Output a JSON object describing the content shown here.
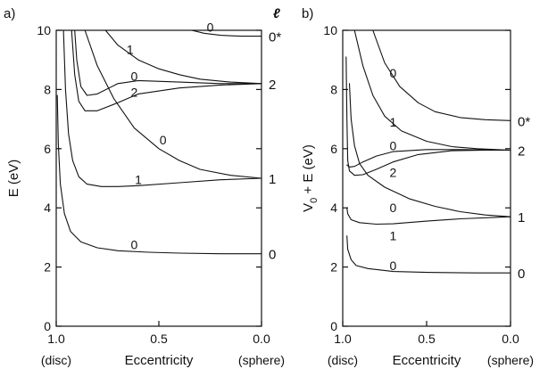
{
  "chart_data": [
    {
      "type": "line",
      "panel_label": "a)",
      "ylabel": "E (eV)",
      "xlabel": "Eccentricity",
      "x_end_left": "(disc)",
      "x_end_right": "(sphere)",
      "right_axis_title": "ℓ",
      "xlim": [
        1.0,
        0.0
      ],
      "ylim": [
        0,
        10
      ],
      "xticks": [
        "1.0",
        "0.5",
        "0.0"
      ],
      "yticks": [
        "0",
        "2",
        "4",
        "6",
        "8",
        "10"
      ],
      "right_labels": [
        {
          "text": "0*",
          "y": 9.8
        },
        {
          "text": "2",
          "y": 8.2
        },
        {
          "text": "1",
          "y": 5.0
        },
        {
          "text": "0",
          "y": 2.45
        }
      ],
      "series": [
        {
          "label": "0",
          "label_x": 0.62,
          "label_y": 2.75,
          "points": [
            [
              0.995,
              7.8
            ],
            [
              0.99,
              6.2
            ],
            [
              0.98,
              4.8
            ],
            [
              0.96,
              3.8
            ],
            [
              0.93,
              3.2
            ],
            [
              0.88,
              2.85
            ],
            [
              0.8,
              2.65
            ],
            [
              0.7,
              2.55
            ],
            [
              0.55,
              2.5
            ],
            [
              0.4,
              2.47
            ],
            [
              0.2,
              2.45
            ],
            [
              0.0,
              2.45
            ]
          ]
        },
        {
          "label": "1",
          "label_x": 0.6,
          "label_y": 4.95,
          "points": [
            [
              0.965,
              10
            ],
            [
              0.955,
              8
            ],
            [
              0.94,
              6.5
            ],
            [
              0.92,
              5.6
            ],
            [
              0.89,
              5.05
            ],
            [
              0.85,
              4.8
            ],
            [
              0.78,
              4.72
            ],
            [
              0.7,
              4.72
            ],
            [
              0.6,
              4.75
            ],
            [
              0.4,
              4.85
            ],
            [
              0.2,
              4.95
            ],
            [
              0.0,
              5.0
            ]
          ]
        },
        {
          "label": "0",
          "label_x": 0.48,
          "label_y": 6.3,
          "points": [
            [
              0.86,
              10
            ],
            [
              0.8,
              8.8
            ],
            [
              0.72,
              7.7
            ],
            [
              0.62,
              6.7
            ],
            [
              0.5,
              6.0
            ],
            [
              0.4,
              5.6
            ],
            [
              0.3,
              5.3
            ],
            [
              0.15,
              5.1
            ],
            [
              0.0,
              5.0
            ]
          ]
        },
        {
          "label": "2",
          "label_x": 0.62,
          "label_y": 7.9,
          "points": [
            [
              0.925,
              10
            ],
            [
              0.91,
              8.5
            ],
            [
              0.89,
              7.6
            ],
            [
              0.86,
              7.28
            ],
            [
              0.8,
              7.28
            ],
            [
              0.7,
              7.55
            ],
            [
              0.6,
              7.85
            ],
            [
              0.4,
              8.05
            ],
            [
              0.2,
              8.15
            ],
            [
              0.0,
              8.2
            ]
          ]
        },
        {
          "label": "0",
          "label_x": 0.62,
          "label_y": 8.45,
          "points": [
            [
              0.91,
              10
            ],
            [
              0.9,
              9.0
            ],
            [
              0.88,
              8.1
            ],
            [
              0.85,
              7.8
            ],
            [
              0.8,
              7.85
            ],
            [
              0.7,
              8.2
            ],
            [
              0.6,
              8.3
            ],
            [
              0.4,
              8.25
            ],
            [
              0.2,
              8.2
            ],
            [
              0.0,
              8.2
            ]
          ]
        },
        {
          "label": "1",
          "label_x": 0.64,
          "label_y": 9.35,
          "points": [
            [
              0.76,
              10
            ],
            [
              0.7,
              9.5
            ],
            [
              0.6,
              9.0
            ],
            [
              0.5,
              8.7
            ],
            [
              0.4,
              8.5
            ],
            [
              0.3,
              8.35
            ],
            [
              0.15,
              8.25
            ],
            [
              0.0,
              8.2
            ]
          ]
        },
        {
          "label": "0",
          "label_x": 0.25,
          "label_y": 10.1,
          "points": [
            [
              0.34,
              10
            ],
            [
              0.28,
              9.9
            ],
            [
              0.2,
              9.83
            ],
            [
              0.1,
              9.8
            ],
            [
              0.0,
              9.8
            ]
          ]
        }
      ]
    },
    {
      "type": "line",
      "panel_label": "b)",
      "ylabel": "V0 + E (eV)",
      "xlabel": "Eccentricity",
      "x_end_left": "(disc)",
      "x_end_right": "(sphere)",
      "right_axis_title": "",
      "xlim": [
        1.0,
        0.0
      ],
      "ylim": [
        0,
        10
      ],
      "xticks": [
        "1.0",
        "0.5",
        "0.0"
      ],
      "yticks": [
        "0",
        "2",
        "4",
        "6",
        "8",
        "10"
      ],
      "right_labels": [
        {
          "text": "0*",
          "y": 6.95
        },
        {
          "text": "2",
          "y": 5.95
        },
        {
          "text": "1",
          "y": 3.7
        },
        {
          "text": "0",
          "y": 1.8
        }
      ],
      "series": [
        {
          "label": "0",
          "label_x": 0.7,
          "label_y": 2.05,
          "points": [
            [
              0.975,
              3.05
            ],
            [
              0.97,
              2.6
            ],
            [
              0.95,
              2.25
            ],
            [
              0.92,
              2.05
            ],
            [
              0.85,
              1.95
            ],
            [
              0.7,
              1.85
            ],
            [
              0.5,
              1.82
            ],
            [
              0.2,
              1.8
            ],
            [
              0.0,
              1.8
            ]
          ]
        },
        {
          "label": "1",
          "label_x": 0.7,
          "label_y": 3.05,
          "points": [
            [
              0.975,
              4.0
            ],
            [
              0.97,
              3.8
            ],
            [
              0.95,
              3.6
            ],
            [
              0.9,
              3.5
            ],
            [
              0.8,
              3.45
            ],
            [
              0.7,
              3.46
            ],
            [
              0.5,
              3.55
            ],
            [
              0.3,
              3.63
            ],
            [
              0.0,
              3.7
            ]
          ]
        },
        {
          "label": "0",
          "label_x": 0.7,
          "label_y": 4.0,
          "points": [
            [
              0.96,
              8.2
            ],
            [
              0.95,
              7.0
            ],
            [
              0.93,
              6.1
            ],
            [
              0.9,
              5.5
            ],
            [
              0.85,
              5.1
            ],
            [
              0.75,
              4.7
            ],
            [
              0.6,
              4.3
            ],
            [
              0.45,
              4.05
            ],
            [
              0.3,
              3.87
            ],
            [
              0.15,
              3.76
            ],
            [
              0.0,
              3.7
            ]
          ]
        },
        {
          "label": "2",
          "label_x": 0.7,
          "label_y": 5.2,
          "points": [
            [
              0.98,
              9.1
            ],
            [
              0.975,
              7.0
            ],
            [
              0.97,
              5.6
            ],
            [
              0.96,
              5.25
            ],
            [
              0.93,
              5.1
            ],
            [
              0.88,
              5.12
            ],
            [
              0.8,
              5.3
            ],
            [
              0.7,
              5.55
            ],
            [
              0.55,
              5.8
            ],
            [
              0.35,
              5.93
            ],
            [
              0.15,
              5.95
            ],
            [
              0.0,
              5.95
            ]
          ]
        },
        {
          "label": "0",
          "label_x": 0.7,
          "label_y": 6.1,
          "points": [
            [
              0.975,
              5.45
            ],
            [
              0.96,
              5.38
            ],
            [
              0.93,
              5.4
            ],
            [
              0.88,
              5.55
            ],
            [
              0.8,
              5.75
            ],
            [
              0.7,
              5.9
            ],
            [
              0.5,
              5.97
            ],
            [
              0.3,
              5.97
            ],
            [
              0.0,
              5.95
            ]
          ]
        },
        {
          "label": "1",
          "label_x": 0.7,
          "label_y": 6.9,
          "points": [
            [
              0.93,
              10
            ],
            [
              0.88,
              8.8
            ],
            [
              0.82,
              7.8
            ],
            [
              0.75,
              7.1
            ],
            [
              0.65,
              6.6
            ],
            [
              0.5,
              6.25
            ],
            [
              0.35,
              6.07
            ],
            [
              0.2,
              6.0
            ],
            [
              0.0,
              5.95
            ]
          ]
        },
        {
          "label": "0",
          "label_x": 0.7,
          "label_y": 8.55,
          "points": [
            [
              0.82,
              10
            ],
            [
              0.75,
              8.9
            ],
            [
              0.66,
              8.1
            ],
            [
              0.55,
              7.55
            ],
            [
              0.45,
              7.25
            ],
            [
              0.3,
              7.05
            ],
            [
              0.15,
              6.98
            ],
            [
              0.0,
              6.95
            ]
          ]
        }
      ]
    }
  ]
}
